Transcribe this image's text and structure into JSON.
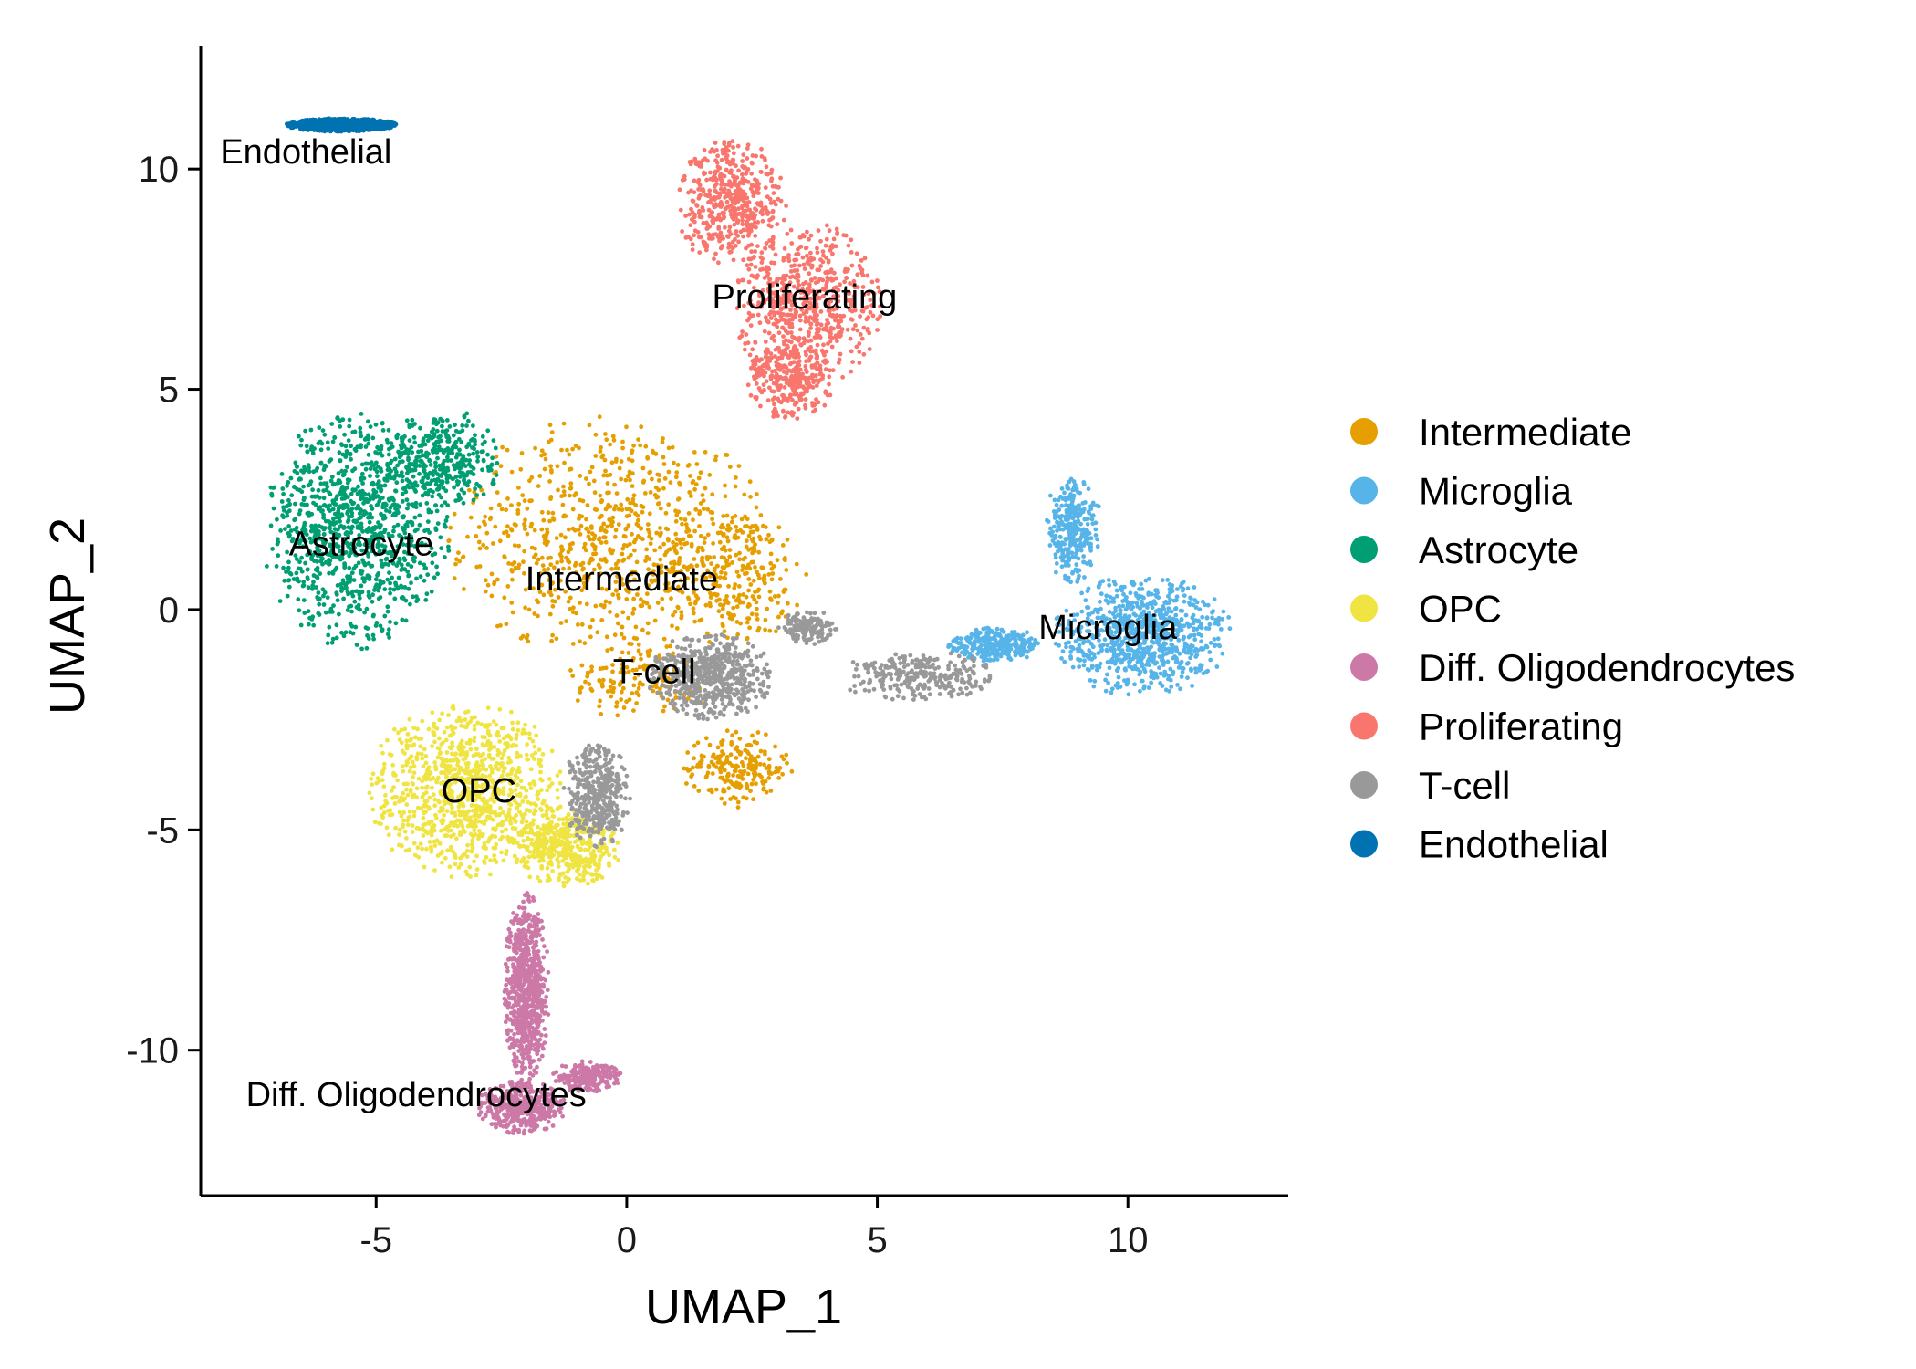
{
  "chart_data": {
    "type": "scatter",
    "title": "",
    "xlabel": "UMAP_1",
    "ylabel": "UMAP_2",
    "xlim": [
      -8.5,
      13.2
    ],
    "ylim": [
      -13.3,
      12.8
    ],
    "x_ticks": [
      -5,
      0,
      5,
      10
    ],
    "y_ticks": [
      -10,
      -5,
      0,
      5,
      10
    ],
    "x_tick_labels": [
      "-5",
      "0",
      "5",
      "10"
    ],
    "y_tick_labels": [
      "-10",
      "-5",
      "0",
      "5",
      "10"
    ],
    "grid": false,
    "legend_position": "right",
    "clusters": [
      {
        "name": "Intermediate",
        "color": "#E69F00",
        "label_x": -0.1,
        "label_y": 0.7,
        "blobs": [
          {
            "cx": -0.4,
            "cy": 1.6,
            "rx": 3.3,
            "ry": 2.8,
            "w": 0.55
          },
          {
            "cx": 2.1,
            "cy": 0.8,
            "rx": 1.6,
            "ry": 1.6,
            "w": 0.2
          },
          {
            "cx": 2.2,
            "cy": -3.6,
            "rx": 1.1,
            "ry": 0.9,
            "w": 0.15
          },
          {
            "cx": 0.3,
            "cy": -1.6,
            "rx": 1.6,
            "ry": 0.9,
            "w": 0.1
          }
        ]
      },
      {
        "name": "Microglia",
        "color": "#56B4E9",
        "label_x": 9.6,
        "label_y": -0.4,
        "blobs": [
          {
            "cx": 10.3,
            "cy": -0.6,
            "rx": 1.8,
            "ry": 1.4,
            "w": 0.6
          },
          {
            "cx": 8.9,
            "cy": 1.8,
            "rx": 0.6,
            "ry": 1.2,
            "w": 0.2
          },
          {
            "cx": 7.3,
            "cy": -0.8,
            "rx": 1.0,
            "ry": 0.4,
            "w": 0.2
          }
        ]
      },
      {
        "name": "Astrocyte",
        "color": "#009E73",
        "label_x": -5.3,
        "label_y": 1.5,
        "blobs": [
          {
            "cx": -5.4,
            "cy": 1.8,
            "rx": 1.9,
            "ry": 2.7,
            "w": 0.75
          },
          {
            "cx": -3.7,
            "cy": 3.4,
            "rx": 1.2,
            "ry": 1.2,
            "w": 0.25
          }
        ]
      },
      {
        "name": "OPC",
        "color": "#F0E442",
        "label_x": -2.95,
        "label_y": -4.1,
        "blobs": [
          {
            "cx": -3.2,
            "cy": -4.1,
            "rx": 2.0,
            "ry": 2.0,
            "w": 0.7
          },
          {
            "cx": -1.2,
            "cy": -5.4,
            "rx": 1.1,
            "ry": 0.9,
            "w": 0.3
          }
        ]
      },
      {
        "name": "Diff. Oligodendrocytes",
        "color": "#CC79A7",
        "label_x": -4.2,
        "label_y": -11.0,
        "blobs": [
          {
            "cx": -2.0,
            "cy": -8.6,
            "rx": 0.45,
            "ry": 2.2,
            "w": 0.55
          },
          {
            "cx": -2.1,
            "cy": -11.3,
            "rx": 0.9,
            "ry": 0.6,
            "w": 0.3
          },
          {
            "cx": -0.8,
            "cy": -10.6,
            "rx": 0.7,
            "ry": 0.35,
            "w": 0.15
          }
        ]
      },
      {
        "name": "Proliferating",
        "color": "#F8766D",
        "label_x": 3.55,
        "label_y": 7.1,
        "blobs": [
          {
            "cx": 2.1,
            "cy": 9.2,
            "rx": 1.1,
            "ry": 1.5,
            "w": 0.35
          },
          {
            "cx": 3.6,
            "cy": 6.9,
            "rx": 1.5,
            "ry": 1.9,
            "w": 0.45
          },
          {
            "cx": 3.3,
            "cy": 5.2,
            "rx": 0.9,
            "ry": 0.9,
            "w": 0.2
          }
        ]
      },
      {
        "name": "T-cell",
        "color": "#999999",
        "label_x": 0.55,
        "label_y": -1.4,
        "blobs": [
          {
            "cx": 1.7,
            "cy": -1.5,
            "rx": 1.3,
            "ry": 1.0,
            "w": 0.4
          },
          {
            "cx": -0.6,
            "cy": -4.2,
            "rx": 0.7,
            "ry": 1.2,
            "w": 0.3
          },
          {
            "cx": 5.8,
            "cy": -1.5,
            "rx": 1.6,
            "ry": 0.6,
            "w": 0.2
          },
          {
            "cx": 3.6,
            "cy": -0.4,
            "rx": 0.6,
            "ry": 0.4,
            "w": 0.1
          }
        ]
      },
      {
        "name": "Endothelial",
        "color": "#0072B2",
        "label_x": -6.4,
        "label_y": 10.4,
        "blobs": [
          {
            "cx": -5.7,
            "cy": 11.0,
            "rx": 1.1,
            "ry": 0.15,
            "w": 1.0
          }
        ]
      }
    ]
  }
}
